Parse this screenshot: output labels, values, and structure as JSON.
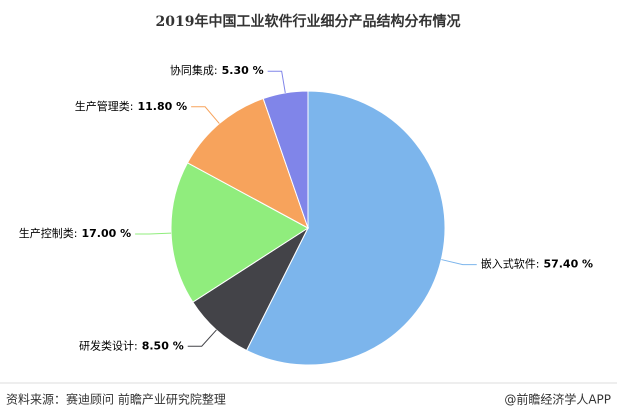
{
  "chart_data": {
    "type": "pie",
    "title": "2019年中国工业软件行业细分产品结构分布情况",
    "categories": [
      "嵌入式软件:",
      "研发类设计:",
      "生产控制类:",
      "生产管理类:",
      "协同集成:"
    ],
    "values": [
      57.4,
      8.5,
      17.0,
      11.8,
      5.3
    ],
    "value_labels": [
      "57.40 %",
      "8.50 %",
      "17.00 %",
      "11.80 %",
      "5.30 %"
    ],
    "colors": [
      "#7cb5ec",
      "#434348",
      "#90ed7d",
      "#f7a35c",
      "#8085e9"
    ],
    "source": "资料来源：赛迪顾问 前瞻产业研究院整理",
    "credit": "@前瞻经济学人APP"
  }
}
